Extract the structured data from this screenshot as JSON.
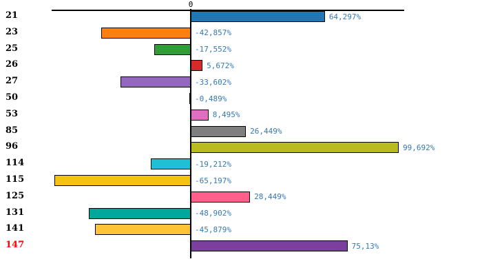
{
  "chart_data": {
    "type": "bar",
    "orientation": "horizontal",
    "title": "",
    "xlabel": "",
    "ylabel": "",
    "grid": false,
    "legend": false,
    "value_suffix": "%",
    "decimal_separator": ",",
    "xlim": [
      -66,
      102
    ],
    "axis": {
      "zero_label": "0",
      "axis_color": "#000000"
    },
    "value_label_color": "#3478b3",
    "categories": [
      "21",
      "23",
      "25",
      "26",
      "27",
      "50",
      "53",
      "85",
      "96",
      "114",
      "115",
      "125",
      "131",
      "141",
      "147"
    ],
    "values": [
      64.297,
      -42.857,
      -17.552,
      5.672,
      -33.602,
      -0.489,
      8.495,
      26.449,
      99.692,
      -19.212,
      -65.197,
      28.449,
      -48.902,
      -45.879,
      75.13
    ],
    "value_labels": [
      "64,297%",
      "-42,857%",
      "-17,552%",
      "5,672%",
      "-33,602%",
      "-0,489%",
      "8,495%",
      "26,449%",
      "99,692%",
      "-19,212%",
      "-65,197%",
      "28,449%",
      "-48,902%",
      "-45,879%",
      "75,13%"
    ],
    "bar_colors": [
      "#2077b4",
      "#ff800e",
      "#2f9e37",
      "#d62b2b",
      "#9468bd",
      "#000000",
      "#e06fc1",
      "#7f7f7f",
      "#b9bc20",
      "#1fc0d4",
      "#f2c30f",
      "#ff5f8d",
      "#00a79b",
      "#fec337",
      "#7b3f9d"
    ],
    "category_label_colors": [
      "#000000",
      "#000000",
      "#000000",
      "#000000",
      "#000000",
      "#000000",
      "#000000",
      "#000000",
      "#000000",
      "#000000",
      "#000000",
      "#000000",
      "#000000",
      "#000000",
      "#ff0000"
    ]
  }
}
